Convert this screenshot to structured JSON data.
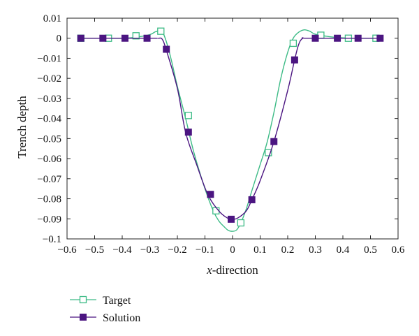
{
  "chart_data": {
    "type": "line",
    "xlabel_italic": "x",
    "xlabel_rest": "-direction",
    "ylabel": "Trench depth",
    "xlim": [
      -0.6,
      0.6
    ],
    "ylim": [
      -0.1,
      0.01
    ],
    "xticks": [
      -0.6,
      -0.5,
      -0.4,
      -0.3,
      -0.2,
      -0.1,
      0,
      0.1,
      0.2,
      0.3,
      0.4,
      0.5,
      0.6
    ],
    "xtick_labels": [
      "−0.6",
      "−0.5",
      "−0.4",
      "−0.3",
      "−0.2",
      "−0.1",
      "0",
      "0.1",
      "0.2",
      "0.3",
      "0.4",
      "0.5",
      "0.6"
    ],
    "yticks": [
      0.01,
      0,
      -0.01,
      -0.02,
      -0.03,
      -0.04,
      -0.05,
      -0.06,
      -0.07,
      -0.08,
      -0.09,
      -0.1
    ],
    "ytick_labels": [
      "0.01",
      "0",
      "−0.01",
      "−0.02",
      "−0.03",
      "−0.04",
      "−0.05",
      "−0.06",
      "−0.07",
      "−0.08",
      "−0.09",
      "−0.1"
    ],
    "grid": false,
    "legend_position": "bottom-left",
    "series": [
      {
        "name": "Target",
        "color": "#3dbb86",
        "marker": "open-square",
        "line_x": [
          -0.55,
          -0.45,
          -0.4,
          -0.35,
          -0.3,
          -0.28,
          -0.265,
          -0.25,
          -0.235,
          -0.22,
          -0.2,
          -0.17,
          -0.14,
          -0.1,
          -0.07,
          -0.05,
          -0.03,
          -0.015,
          0,
          0.015,
          0.03,
          0.05,
          0.07,
          0.1,
          0.125,
          0.15,
          0.175,
          0.2,
          0.22,
          0.24,
          0.26,
          0.28,
          0.3,
          0.35,
          0.4,
          0.45,
          0.5,
          0.54
        ],
        "line_y": [
          0,
          0,
          0,
          0.0005,
          0.0018,
          0.0032,
          0.0036,
          0.002,
          -0.004,
          -0.012,
          -0.024,
          -0.04,
          -0.057,
          -0.075,
          -0.086,
          -0.091,
          -0.094,
          -0.0958,
          -0.0962,
          -0.0955,
          -0.092,
          -0.085,
          -0.076,
          -0.063,
          -0.052,
          -0.037,
          -0.02,
          -0.007,
          0,
          0.003,
          0.0042,
          0.0035,
          0.002,
          0.0008,
          0.0002,
          0,
          0,
          0
        ],
        "marker_x": [
          -0.55,
          -0.45,
          -0.35,
          -0.26,
          -0.16,
          -0.06,
          0.03,
          0.13,
          0.22,
          0.32,
          0.42,
          0.52
        ],
        "marker_y": [
          0,
          0,
          0.0012,
          0.0035,
          -0.0385,
          -0.086,
          -0.092,
          -0.057,
          -0.0025,
          0.0015,
          0,
          0
        ]
      },
      {
        "name": "Solution",
        "color": "#4b1581",
        "marker": "filled-square",
        "line_x": [
          -0.55,
          -0.3,
          -0.27,
          -0.255,
          -0.24,
          -0.2,
          -0.17,
          -0.13,
          -0.09,
          -0.05,
          -0.02,
          0,
          0.02,
          0.05,
          0.07,
          0.1,
          0.15,
          0.2,
          0.225,
          0.24,
          0.255,
          0.28,
          0.54
        ],
        "line_y": [
          0,
          0,
          0,
          -0.0005,
          -0.006,
          -0.025,
          -0.047,
          -0.063,
          -0.0778,
          -0.086,
          -0.0895,
          -0.0902,
          -0.0895,
          -0.086,
          -0.0805,
          -0.071,
          -0.0515,
          -0.026,
          -0.0108,
          -0.003,
          0,
          0,
          0
        ],
        "marker_x": [
          -0.55,
          -0.47,
          -0.39,
          -0.31,
          -0.24,
          -0.16,
          -0.08,
          -0.005,
          0.07,
          0.15,
          0.225,
          0.3,
          0.38,
          0.455,
          0.535
        ],
        "marker_y": [
          0,
          0,
          0,
          0,
          -0.0055,
          -0.0468,
          -0.0778,
          -0.0902,
          -0.0805,
          -0.0515,
          -0.0108,
          0,
          0,
          0,
          0
        ]
      }
    ]
  }
}
